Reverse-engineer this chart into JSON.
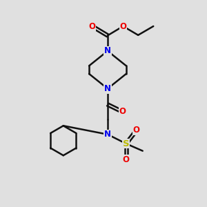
{
  "bg_color": "#e0e0e0",
  "bond_color": "#111111",
  "N_color": "#0000ee",
  "O_color": "#ee0000",
  "S_color": "#bbbb00",
  "line_width": 1.8,
  "font_size": 8.5,
  "figsize": [
    3.0,
    3.0
  ],
  "dpi": 100,
  "xlim": [
    0,
    10
  ],
  "ylim": [
    0,
    10
  ]
}
